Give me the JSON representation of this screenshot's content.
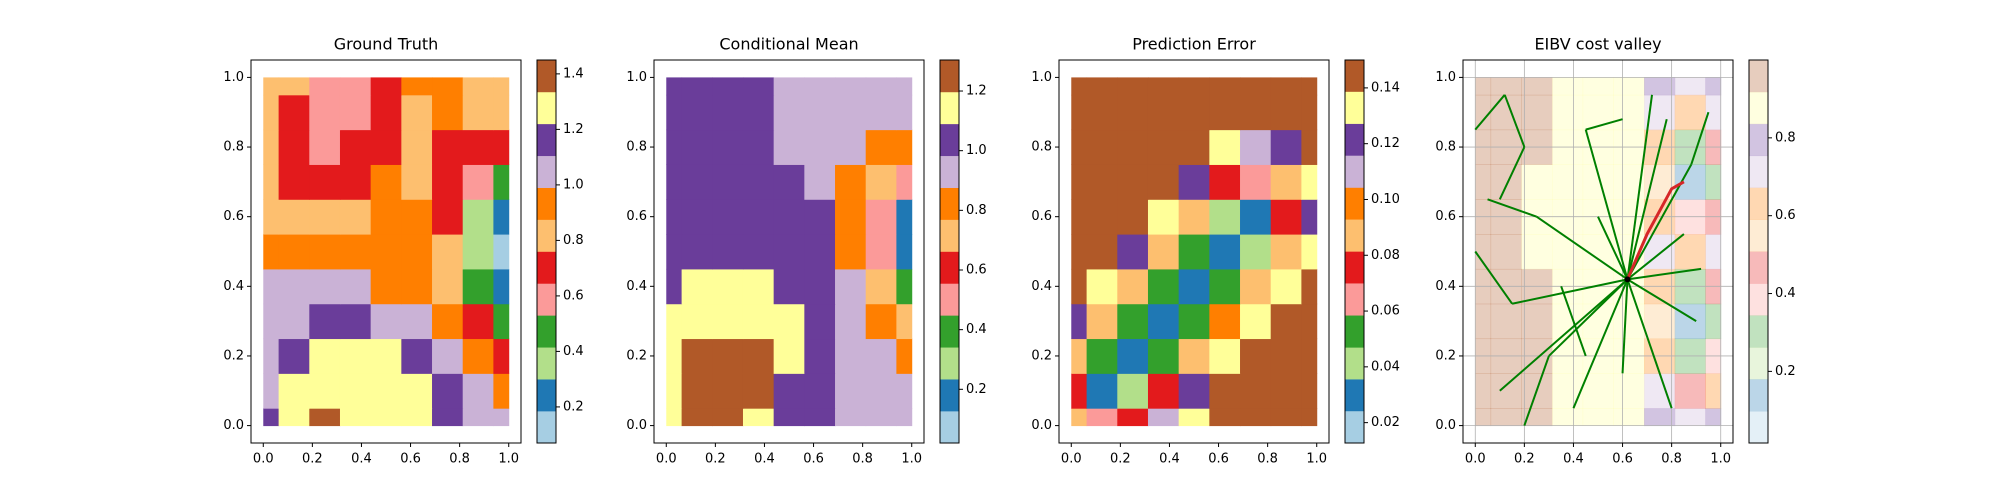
{
  "chart_data": [
    {
      "type": "contour",
      "title": "Ground Truth",
      "x": [
        0,
        0.125,
        0.25,
        0.375,
        0.5,
        0.625,
        0.75,
        0.875,
        1
      ],
      "y": [
        0,
        0.1,
        0.2,
        0.3,
        0.4,
        0.5,
        0.6,
        0.7,
        0.8,
        0.9,
        1
      ],
      "z": [
        [
          1.15,
          1.3,
          1.4,
          1.3,
          1.28,
          1.25,
          1.15,
          1.05,
          1.0
        ],
        [
          1.1,
          1.25,
          1.3,
          1.28,
          1.3,
          1.25,
          1.12,
          1.0,
          0.9
        ],
        [
          1.05,
          1.15,
          1.25,
          1.25,
          1.3,
          1.2,
          1.05,
          0.9,
          0.7
        ],
        [
          1.05,
          1.05,
          1.15,
          1.2,
          1.1,
          1.05,
          0.95,
          0.7,
          0.5
        ],
        [
          1.05,
          1.05,
          1.05,
          1.0,
          0.95,
          0.95,
          0.85,
          0.45,
          0.25
        ],
        [
          0.95,
          0.95,
          0.95,
          0.9,
          0.9,
          0.9,
          0.8,
          0.35,
          0.12
        ],
        [
          0.85,
          0.85,
          0.85,
          0.85,
          0.95,
          0.9,
          0.75,
          0.4,
          0.2
        ],
        [
          0.8,
          0.75,
          0.7,
          0.75,
          0.9,
          0.85,
          0.75,
          0.55,
          0.45
        ],
        [
          0.85,
          0.65,
          0.6,
          0.65,
          0.7,
          0.8,
          0.75,
          0.7,
          0.7
        ],
        [
          0.8,
          0.75,
          0.6,
          0.55,
          0.7,
          0.85,
          0.9,
          0.85,
          0.8
        ],
        [
          0.85,
          0.8,
          0.6,
          0.6,
          0.7,
          0.9,
          0.9,
          0.85,
          0.8
        ]
      ],
      "levels": [
        0.07,
        0.185,
        0.3,
        0.415,
        0.53,
        0.645,
        0.76,
        0.875,
        0.99,
        1.105,
        1.22,
        1.335,
        1.45
      ],
      "colors": [
        "#a6cee3",
        "#1f78b4",
        "#b2df8a",
        "#33a02c",
        "#fb9a99",
        "#e31a1c",
        "#fdbf6f",
        "#ff7f00",
        "#cab2d6",
        "#6a3d9a",
        "#ffff99",
        "#b15928"
      ],
      "xlim": [
        -0.05,
        1.05
      ],
      "ylim": [
        -0.05,
        1.05
      ],
      "xticks": [
        {
          "value": 0,
          "label": "0.0"
        },
        0.2,
        0.4,
        0.6,
        0.8,
        {
          "value": 1,
          "label": "1.0"
        }
      ],
      "yticks": [
        {
          "value": 0,
          "label": "0.0"
        },
        0.2,
        0.4,
        0.6,
        0.8,
        {
          "value": 1,
          "label": "1.0"
        }
      ],
      "cticks": [
        0.2,
        0.4,
        0.6,
        0.8,
        {
          "value": 1,
          "label": "1.0"
        },
        1.2,
        1.4
      ]
    },
    {
      "type": "contour",
      "title": "Conditional Mean",
      "x": [
        0,
        0.125,
        0.25,
        0.375,
        0.5,
        0.625,
        0.75,
        0.875,
        1
      ],
      "y": [
        0,
        0.1,
        0.2,
        0.3,
        0.4,
        0.5,
        0.6,
        0.7,
        0.8,
        0.9,
        1
      ],
      "z": [
        [
          1.1,
          1.25,
          1.25,
          1.15,
          1.05,
          1.0,
          0.95,
          0.95,
          0.95
        ],
        [
          1.15,
          1.25,
          1.3,
          1.2,
          1.05,
          1.0,
          0.95,
          0.95,
          0.9
        ],
        [
          1.15,
          1.25,
          1.25,
          1.2,
          1.1,
          1.0,
          0.95,
          0.9,
          0.85
        ],
        [
          1.15,
          1.15,
          1.15,
          1.15,
          1.1,
          1.05,
          0.95,
          0.85,
          0.7
        ],
        [
          1.05,
          1.12,
          1.15,
          1.12,
          1.05,
          1.0,
          0.9,
          0.7,
          0.4
        ],
        [
          1.05,
          1.05,
          1.05,
          1.05,
          1.05,
          1.0,
          0.85,
          0.55,
          0.15
        ],
        [
          1.05,
          1.05,
          1.05,
          1.05,
          1.05,
          1.0,
          0.85,
          0.55,
          0.15
        ],
        [
          1.05,
          1.05,
          1.05,
          1.05,
          1.0,
          0.95,
          0.85,
          0.7,
          0.45
        ],
        [
          1.05,
          1.05,
          1.05,
          1.05,
          0.95,
          0.95,
          0.9,
          0.85,
          0.8
        ],
        [
          1.05,
          1.05,
          1.05,
          1.05,
          0.95,
          0.95,
          0.95,
          0.95,
          0.95
        ],
        [
          1.05,
          1.05,
          1.05,
          1.05,
          0.95,
          0.95,
          0.95,
          0.95,
          0.95
        ]
      ],
      "levels": [
        0.02,
        0.127,
        0.234,
        0.341,
        0.448,
        0.555,
        0.662,
        0.769,
        0.876,
        0.983,
        1.09,
        1.197,
        1.304
      ],
      "colors": [
        "#a6cee3",
        "#1f78b4",
        "#b2df8a",
        "#33a02c",
        "#fb9a99",
        "#e31a1c",
        "#fdbf6f",
        "#ff7f00",
        "#cab2d6",
        "#6a3d9a",
        "#ffff99",
        "#b15928"
      ],
      "xlim": [
        -0.05,
        1.05
      ],
      "ylim": [
        -0.05,
        1.05
      ],
      "xticks": [
        {
          "value": 0,
          "label": "0.0"
        },
        0.2,
        0.4,
        0.6,
        0.8,
        {
          "value": 1,
          "label": "1.0"
        }
      ],
      "yticks": [
        {
          "value": 0,
          "label": "0.0"
        },
        0.2,
        0.4,
        0.6,
        0.8,
        {
          "value": 1,
          "label": "1.0"
        }
      ],
      "cticks": [
        0.2,
        0.4,
        0.6,
        0.8,
        {
          "value": 1,
          "label": "1.0"
        },
        1.2
      ]
    },
    {
      "type": "contour",
      "title": "Prediction Error",
      "x": [
        0,
        0.125,
        0.25,
        0.375,
        0.5,
        0.625,
        0.75,
        0.875,
        1
      ],
      "y": [
        0,
        0.1,
        0.2,
        0.3,
        0.4,
        0.5,
        0.6,
        0.7,
        0.8,
        0.9,
        1
      ],
      "z": [
        [
          0.09,
          0.06,
          0.08,
          0.11,
          0.13,
          0.145,
          0.145,
          0.145,
          0.145
        ],
        [
          0.07,
          0.03,
          0.04,
          0.08,
          0.12,
          0.145,
          0.145,
          0.145,
          0.145
        ],
        [
          0.09,
          0.05,
          0.03,
          0.05,
          0.09,
          0.13,
          0.145,
          0.145,
          0.145
        ],
        [
          0.12,
          0.09,
          0.05,
          0.03,
          0.05,
          0.1,
          0.135,
          0.145,
          0.145
        ],
        [
          0.145,
          0.13,
          0.09,
          0.05,
          0.03,
          0.05,
          0.09,
          0.13,
          0.14
        ],
        [
          0.145,
          0.145,
          0.125,
          0.09,
          0.05,
          0.025,
          0.04,
          0.09,
          0.13
        ],
        [
          0.145,
          0.145,
          0.145,
          0.13,
          0.09,
          0.04,
          0.03,
          0.07,
          0.12
        ],
        [
          0.145,
          0.145,
          0.145,
          0.145,
          0.125,
          0.08,
          0.06,
          0.09,
          0.13
        ],
        [
          0.145,
          0.145,
          0.145,
          0.145,
          0.145,
          0.13,
          0.11,
          0.12,
          0.14
        ],
        [
          0.145,
          0.145,
          0.145,
          0.145,
          0.145,
          0.145,
          0.14,
          0.145,
          0.145
        ],
        [
          0.145,
          0.145,
          0.145,
          0.145,
          0.145,
          0.145,
          0.145,
          0.145,
          0.145
        ]
      ],
      "levels": [
        0.0127,
        0.0242,
        0.0356,
        0.047,
        0.0585,
        0.07,
        0.0814,
        0.0929,
        0.1043,
        0.1158,
        0.1272,
        0.1387,
        0.15
      ],
      "colors": [
        "#a6cee3",
        "#1f78b4",
        "#b2df8a",
        "#33a02c",
        "#fb9a99",
        "#e31a1c",
        "#fdbf6f",
        "#ff7f00",
        "#cab2d6",
        "#6a3d9a",
        "#ffff99",
        "#b15928"
      ],
      "xlim": [
        -0.05,
        1.05
      ],
      "ylim": [
        -0.05,
        1.05
      ],
      "xticks": [
        {
          "value": 0,
          "label": "0.0"
        },
        0.2,
        0.4,
        0.6,
        0.8,
        {
          "value": 1,
          "label": "1.0"
        }
      ],
      "yticks": [
        {
          "value": 0,
          "label": "0.0"
        },
        0.2,
        0.4,
        0.6,
        0.8,
        {
          "value": 1,
          "label": "1.0"
        }
      ],
      "cticks": [
        0.02,
        0.04,
        0.06,
        0.08,
        {
          "value": 0.1,
          "label": "0.10"
        },
        0.12,
        0.14
      ]
    },
    {
      "type": "contour",
      "title": "EIBV cost valley",
      "x": [
        0,
        0.125,
        0.25,
        0.375,
        0.5,
        0.625,
        0.75,
        0.875,
        1
      ],
      "y": [
        0,
        0.1,
        0.2,
        0.3,
        0.4,
        0.5,
        0.6,
        0.7,
        0.8,
        0.9,
        1
      ],
      "z": [
        [
          0.95,
          0.95,
          0.95,
          0.9,
          0.9,
          0.85,
          0.8,
          0.75,
          0.8
        ],
        [
          0.95,
          0.95,
          0.95,
          0.9,
          0.9,
          0.85,
          0.7,
          0.5,
          0.6
        ],
        [
          0.95,
          0.95,
          0.95,
          0.9,
          0.9,
          0.85,
          0.6,
          0.3,
          0.4
        ],
        [
          0.95,
          0.95,
          0.95,
          0.9,
          0.9,
          0.85,
          0.55,
          0.15,
          0.3
        ],
        [
          0.95,
          0.95,
          0.95,
          0.9,
          0.9,
          0.85,
          0.6,
          0.3,
          0.5
        ],
        [
          0.95,
          0.95,
          0.9,
          0.9,
          0.9,
          0.85,
          0.75,
          0.65,
          0.75
        ],
        [
          0.95,
          0.95,
          0.9,
          0.9,
          0.9,
          0.85,
          0.6,
          0.35,
          0.5
        ],
        [
          0.95,
          0.95,
          0.9,
          0.9,
          0.9,
          0.85,
          0.55,
          0.15,
          0.3
        ],
        [
          0.95,
          0.95,
          0.95,
          0.9,
          0.9,
          0.85,
          0.6,
          0.3,
          0.5
        ],
        [
          0.95,
          0.95,
          0.95,
          0.9,
          0.9,
          0.85,
          0.7,
          0.6,
          0.7
        ],
        [
          0.95,
          0.95,
          0.95,
          0.9,
          0.9,
          0.85,
          0.8,
          0.75,
          0.8
        ]
      ],
      "levels": [
        0.016,
        0.098,
        0.18,
        0.262,
        0.344,
        0.426,
        0.508,
        0.59,
        0.672,
        0.754,
        0.836,
        0.918,
        1.0
      ],
      "colors": [
        "#a6cee3",
        "#1f78b4",
        "#b2df8a",
        "#33a02c",
        "#fb9a99",
        "#e31a1c",
        "#fdbf6f",
        "#ff7f00",
        "#cab2d6",
        "#6a3d9a",
        "#ffff99",
        "#b15928"
      ],
      "alpha": 0.3,
      "grid": true,
      "xlim": [
        -0.05,
        1.05
      ],
      "ylim": [
        -0.05,
        1.05
      ],
      "xticks": [
        {
          "value": 0,
          "label": "0.0"
        },
        0.2,
        0.4,
        0.6,
        0.8,
        {
          "value": 1,
          "label": "1.0"
        }
      ],
      "yticks": [
        {
          "value": 0,
          "label": "0.0"
        },
        0.2,
        0.4,
        0.6,
        0.8,
        {
          "value": 1,
          "label": "1.0"
        }
      ],
      "cticks": [
        0.2,
        0.4,
        0.6,
        0.8
      ],
      "segment_color": "#008000",
      "segments": [
        [
          0.62,
          0.42,
          0.3,
          0.2
        ],
        [
          0.62,
          0.42,
          0.15,
          0.35
        ],
        [
          0.62,
          0.42,
          0.25,
          0.6
        ],
        [
          0.62,
          0.42,
          0.45,
          0.85
        ],
        [
          0.62,
          0.42,
          0.72,
          0.95
        ],
        [
          0.62,
          0.42,
          0.88,
          0.75
        ],
        [
          0.62,
          0.42,
          0.9,
          0.3
        ],
        [
          0.62,
          0.42,
          0.8,
          0.05
        ],
        [
          0.62,
          0.42,
          0.6,
          0.15
        ],
        [
          0.62,
          0.42,
          0.4,
          0.05
        ],
        [
          0.62,
          0.42,
          0.1,
          0.1
        ],
        [
          0.62,
          0.42,
          0.85,
          0.55
        ],
        [
          0.62,
          0.42,
          0.5,
          0.6
        ],
        [
          0.62,
          0.42,
          0.92,
          0.45
        ],
        [
          0.62,
          0.42,
          0.78,
          0.88
        ],
        [
          0.15,
          0.35,
          0.0,
          0.5
        ],
        [
          0.3,
          0.2,
          0.2,
          0.0
        ],
        [
          0.25,
          0.6,
          0.05,
          0.65
        ],
        [
          0.45,
          0.85,
          0.6,
          0.88
        ],
        [
          0.0,
          0.85,
          0.12,
          0.95
        ],
        [
          0.12,
          0.95,
          0.2,
          0.8
        ],
        [
          0.2,
          0.8,
          0.1,
          0.65
        ],
        [
          0.35,
          0.4,
          0.45,
          0.2
        ],
        [
          0.88,
          0.75,
          0.95,
          0.9
        ]
      ],
      "trajectory_color": "#d62728",
      "trajectory": {
        "x": [
          0.62,
          0.7,
          0.8,
          0.85
        ],
        "y": [
          0.42,
          0.55,
          0.68,
          0.7
        ]
      },
      "start": {
        "x": 0.62,
        "y": 0.42
      }
    }
  ]
}
